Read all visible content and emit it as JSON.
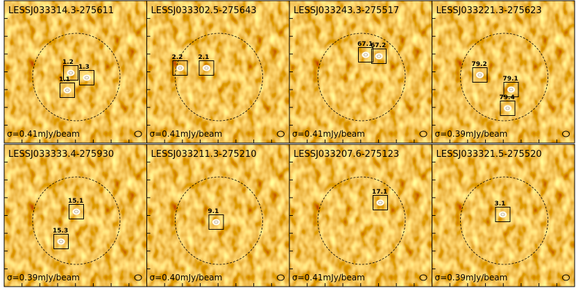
{
  "panels": [
    {
      "title": "LESSJ033314.3-275611",
      "sigma": "σ=0.41mJy/beam",
      "sources": [
        "1.2",
        "1.3",
        "1.1"
      ]
    },
    {
      "title": "LESSJ033302.5-275643",
      "sigma": "σ=0.41mJy/beam",
      "sources": [
        "2.2",
        "2.1"
      ]
    },
    {
      "title": "LESSJ033243.3-275517",
      "sigma": "σ=0.41mJy/beam",
      "sources": [
        "67.1",
        "67.2"
      ]
    },
    {
      "title": "LESSJ033221.3-275623",
      "sigma": "σ=0.39mJy/beam",
      "sources": [
        "79.2",
        "79.1",
        "79.4"
      ]
    },
    {
      "title": "LESSJ033333.4-275930",
      "sigma": "σ=0.39mJy/beam",
      "sources": [
        "15.1",
        "15.3"
      ]
    },
    {
      "title": "LESSJ033211.3-275210",
      "sigma": "σ=0.40mJy/beam",
      "sources": [
        "9.1"
      ]
    },
    {
      "title": "LESSJ033207.6-275123",
      "sigma": "σ=0.41mJy/beam",
      "sources": [
        "17.1"
      ]
    },
    {
      "title": "LESSJ033321.5-275520",
      "sigma": "σ=0.39mJy/beam",
      "sources": [
        "3.1"
      ]
    }
  ]
}
